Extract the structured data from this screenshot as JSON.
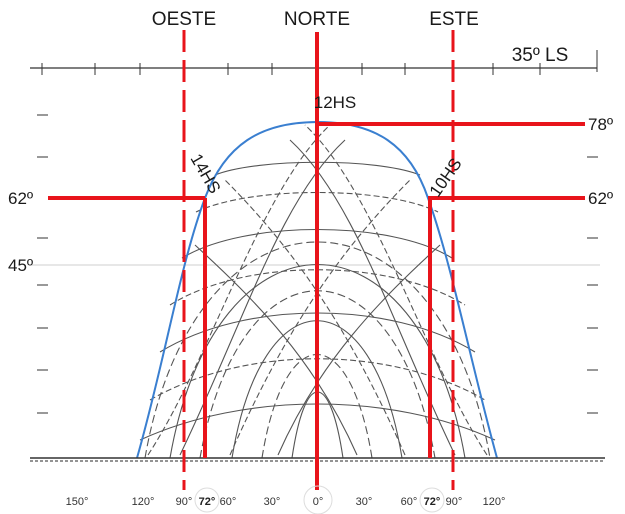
{
  "header": {
    "west_label": "OESTE",
    "north_label": "NORTE",
    "east_label": "ESTE",
    "latitude_label": "35º LS"
  },
  "hour_labels": {
    "noon": "12HS",
    "afternoon": "14HS",
    "morning": "10HS"
  },
  "altitude_labels": {
    "noon_altitude": "78º",
    "left_altitude": "62º",
    "right_altitude": "62º",
    "reference_altitude": "45º"
  },
  "azimuth_ticks": [
    "150°",
    "120°",
    "90°",
    "72°",
    "60°",
    "30°",
    "0°",
    "30°",
    "60°",
    "72°",
    "90°",
    "120°"
  ],
  "colors": {
    "marker": "#e8141b",
    "envelope": "#3a7fd0",
    "curves": "#555555",
    "axis": "#333333"
  }
}
